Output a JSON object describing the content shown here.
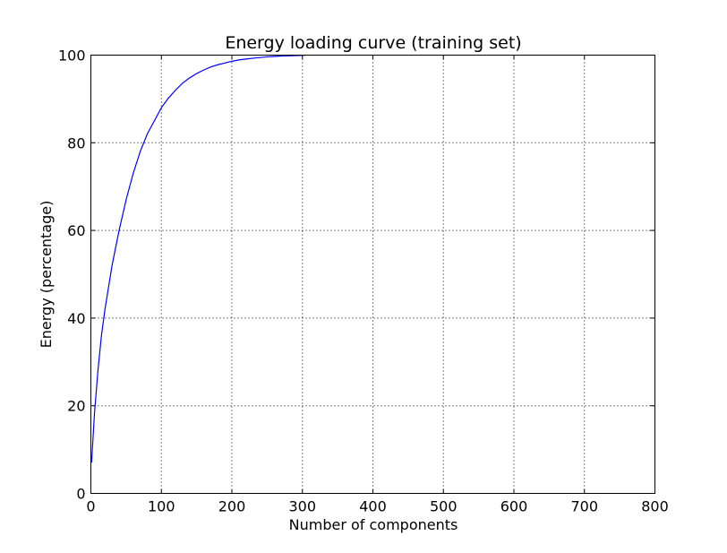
{
  "chart_data": {
    "type": "line",
    "title": "Energy loading curve (training set)",
    "xlabel": "Number of components",
    "ylabel": "Energy (percentage)",
    "xlim": [
      0,
      800
    ],
    "ylim": [
      0,
      100
    ],
    "xticks": [
      0,
      100,
      200,
      300,
      400,
      500,
      600,
      700,
      800
    ],
    "yticks": [
      0,
      20,
      40,
      60,
      80,
      100
    ],
    "grid": true,
    "series": [
      {
        "color": "#0000ff",
        "x": [
          1,
          5,
          10,
          15,
          20,
          25,
          30,
          40,
          50,
          60,
          70,
          80,
          90,
          100,
          110,
          120,
          130,
          140,
          150,
          160,
          170,
          180,
          190,
          200,
          210,
          220,
          230,
          240,
          250,
          260,
          270,
          280,
          290,
          300,
          305
        ],
        "y": [
          7,
          18,
          28,
          36,
          42,
          47,
          52,
          60,
          67,
          73,
          78,
          82,
          85,
          88,
          90.2,
          92,
          93.6,
          94.8,
          95.8,
          96.6,
          97.3,
          97.8,
          98.2,
          98.6,
          98.9,
          99.1,
          99.3,
          99.45,
          99.6,
          99.7,
          99.8,
          99.85,
          99.9,
          99.95,
          100
        ]
      }
    ]
  }
}
